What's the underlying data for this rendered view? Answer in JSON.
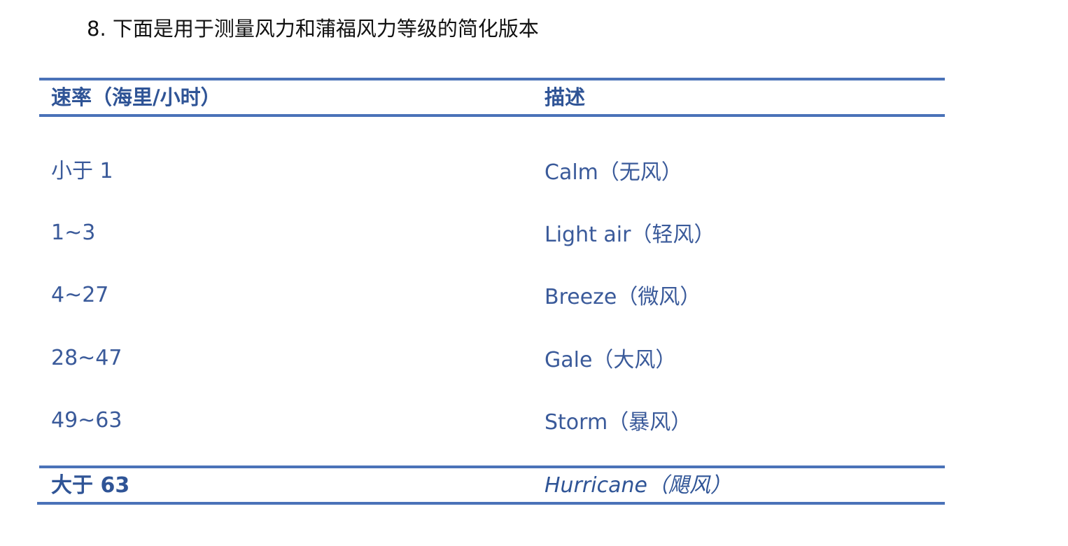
{
  "title": "8. 下面是用于测量风力和蒲福风力等级的简化版本",
  "table": {
    "headers": [
      "速率（海里/小时）",
      "描述"
    ],
    "rows": [
      {
        "speed": "小于 1",
        "description": "Calm（无风）"
      },
      {
        "speed": "1~3",
        "description": "Light air（轻风）"
      },
      {
        "speed": "4~27",
        "description": "Breeze（微风）"
      },
      {
        "speed": "28~47",
        "description": "Gale（大风）"
      },
      {
        "speed": "49~63",
        "description": "Storm（暴风）"
      },
      {
        "speed": "大于 63",
        "description": "Hurricane（飓风）"
      }
    ]
  },
  "colors": {
    "rule": "#4a72b8",
    "text": "#2f5496"
  }
}
